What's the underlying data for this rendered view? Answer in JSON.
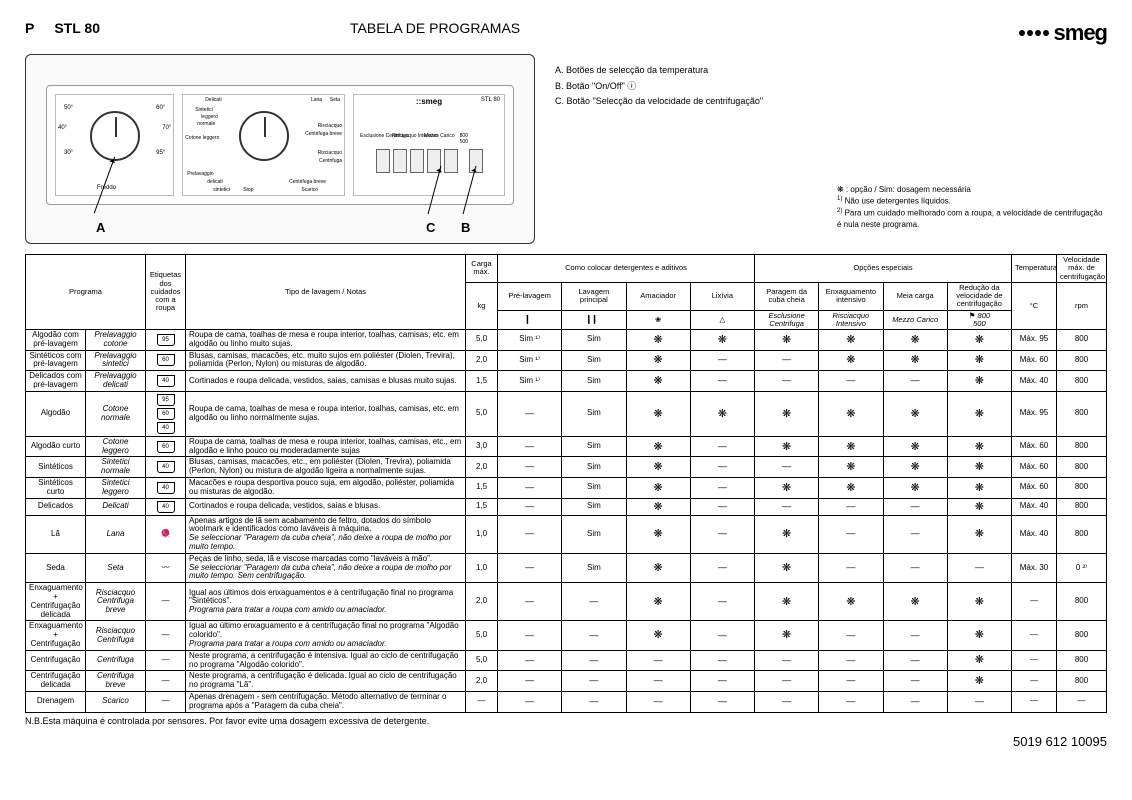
{
  "header": {
    "p": "P",
    "model": "STL 80",
    "title": "TABELA DE PROGRAMAS",
    "logo": "smeg"
  },
  "legend": {
    "a": "A. Botões de selecção da temperatura",
    "b": "B. Botão \"On/Off\"",
    "c": "C. Botão \"Selecção da velocidade de centrifugação\"",
    "opt": "❋ : opção / Sim: dosagem necessária",
    "n1": "Não use detergentes líquidos.",
    "n2": "Para um cuidado melhorado com a roupa, a velocidade de centrifugação é nula neste programa."
  },
  "callout": {
    "a": "A",
    "b": "B",
    "c": "C"
  },
  "dial_labels": [
    "30°",
    "40°",
    "50°",
    "60°",
    "70°",
    "95°",
    "Freddo"
  ],
  "prog_labels": {
    "delicati": "Delicati",
    "sintetici": "Sintetici",
    "cotone": "Cotone leggero",
    "prelavaggio": "Prelavaggio",
    "lana": "Lana",
    "seta": "Seta",
    "risciacquo": "Risciacquo",
    "centrifuga": "Centrifuga breve",
    "centrifuga2": "Centrifuga",
    "scarico": "Scarico",
    "stop": "Stop",
    "normale": "normale",
    "leggero": "leggero",
    "delicati2": "delicati",
    "sintetici2": "sintetici",
    "cotone2": "cotone"
  },
  "btn_labels": [
    "Esclusione Centrifuga",
    "Risciacquo Intensivo",
    "Mezzo Carico",
    "800",
    "500"
  ],
  "th": {
    "programa": "Programa",
    "etiquetas": "Etiquetas dos cuidados com a roupa",
    "tipo": "Tipo de lavagem / Notas",
    "carga": "Carga máx.",
    "kg": "kg",
    "detergentes": "Como colocar detergentes e aditivos",
    "pre": "Pré-lavagem",
    "principal": "Lavagem principal",
    "amaciador": "Amaciador",
    "lixivia": "Lixívia",
    "opcoes": "Opções especiais",
    "paragem": "Paragem da cuba cheia",
    "enxagua": "Enxaguamento intensivo",
    "meia": "Meia carga",
    "reducao": "Redução da velocidade de centrifugação",
    "temp": "Temperatura",
    "c": "°C",
    "velocidade": "Velocidade máx. de centrifugação",
    "rpm": "rpm",
    "esclusione": "Esclusione Centrifuga",
    "risciacquo": "Risciacquo Intensivo",
    "mezzo": "Mezzo Carico",
    "sp800": "800",
    "sp500": "500"
  },
  "rows": [
    {
      "p1": "Algodão com pré-lavagem",
      "p2": "Prelavaggio cotone",
      "care": [
        "95"
      ],
      "tipo": "Roupa de cama, toalhas de mesa e roupa interior, toalhas, camisas, etc. em algodão ou linho muito sujas.",
      "kg": "5,0",
      "pre": "Sim ¹⁾",
      "main": "Sim",
      "ama": "❋",
      "lix": "❋",
      "par": "❋",
      "enx": "❋",
      "mei": "❋",
      "red": "❋",
      "temp": "Máx. 95",
      "rpm": "800"
    },
    {
      "p1": "Sintéticos com pré-lavagem",
      "p2": "Prelavaggio sintetici",
      "care": [
        "60"
      ],
      "tipo": "Blusas, camisas, macacões, etc. muito sujos em poliéster (Diolen, Trevira), poliamida (Perlon, Nylon) ou misturas de algodão.",
      "kg": "2,0",
      "pre": "Sim ¹⁾",
      "main": "Sim",
      "ama": "❋",
      "lix": "—",
      "par": "—",
      "enx": "❋",
      "mei": "❋",
      "red": "❋",
      "temp": "Máx. 60",
      "rpm": "800"
    },
    {
      "p1": "Delicados com pré-lavagem",
      "p2": "Prelavaggio delicati",
      "care": [
        "40"
      ],
      "tipo": "Cortinados e roupa delicada, vestidos, saias, camisas e blusas muito sujas.",
      "kg": "1,5",
      "pre": "Sim ¹⁾",
      "main": "Sim",
      "ama": "❋",
      "lix": "—",
      "par": "—",
      "enx": "—",
      "mei": "—",
      "red": "❋",
      "temp": "Máx. 40",
      "rpm": "800"
    },
    {
      "p1": "Algodão",
      "p2": "Cotone normale",
      "care": [
        "95",
        "60",
        "40"
      ],
      "tipo": "Roupa de cama, toalhas de mesa e roupa interior, toalhas, camisas, etc. em algodão ou linho normalmente sujas.",
      "kg": "5,0",
      "pre": "—",
      "main": "Sim",
      "ama": "❋",
      "lix": "❋",
      "par": "❋",
      "enx": "❋",
      "mei": "❋",
      "red": "❋",
      "temp": "Máx. 95",
      "rpm": "800"
    },
    {
      "p1": "Algodão curto",
      "p2": "Cotone leggero",
      "care": [
        "60"
      ],
      "tipo": "Roupa de cama, toalhas de mesa e roupa interior, toalhas, camisas, etc., em algodão e linho pouco ou moderadamente sujas",
      "kg": "3,0",
      "pre": "—",
      "main": "Sim",
      "ama": "❋",
      "lix": "—",
      "par": "❋",
      "enx": "❋",
      "mei": "❋",
      "red": "❋",
      "temp": "Máx. 60",
      "rpm": "800"
    },
    {
      "p1": "Sintéticos",
      "p2": "Sintetici normale",
      "care": [
        "40"
      ],
      "tipo": "Blusas, camisas, macacões, etc., em poliéster (Diolen, Trevira), poliamida (Perlon, Nylon) ou mistura de algodão ligeira a normalmente sujas.",
      "kg": "2,0",
      "pre": "—",
      "main": "Sim",
      "ama": "❋",
      "lix": "—",
      "par": "—",
      "enx": "❋",
      "mei": "❋",
      "red": "❋",
      "temp": "Máx. 60",
      "rpm": "800"
    },
    {
      "p1": "Sintéticos curto",
      "p2": "Sintetici leggero",
      "care": [
        "40"
      ],
      "tipo": "Macacões e roupa desportiva pouco suja, em algodão, poliéster, poliamida ou misturas de algodão.",
      "kg": "1,5",
      "pre": "—",
      "main": "Sim",
      "ama": "❋",
      "lix": "—",
      "par": "❋",
      "enx": "❋",
      "mei": "❋",
      "red": "❋",
      "temp": "Máx. 60",
      "rpm": "800"
    },
    {
      "p1": "Delicados",
      "p2": "Delicati",
      "care": [
        "40"
      ],
      "tipo": "Cortinados e roupa delicada, vestidos, saias e blusas.",
      "kg": "1,5",
      "pre": "—",
      "main": "Sim",
      "ama": "❋",
      "lix": "—",
      "par": "—",
      "enx": "—",
      "mei": "—",
      "red": "❋",
      "temp": "Máx. 40",
      "rpm": "800"
    },
    {
      "p1": "Lã",
      "p2": "Lana",
      "care": [
        "wool"
      ],
      "tipo": "Apenas artigos de lã sem acabamento de feltro, dotados do símbolo woolmark e identificados como laváveis à máquina.",
      "tipo2": "Se seleccionar \"Paragem da cuba cheia\", não deixe a roupa de molho por muito tempo.",
      "kg": "1,0",
      "pre": "—",
      "main": "Sim",
      "ama": "❋",
      "lix": "—",
      "par": "❋",
      "enx": "—",
      "mei": "—",
      "red": "❋",
      "temp": "Máx. 40",
      "rpm": "800"
    },
    {
      "p1": "Seda",
      "p2": "Seta",
      "care": [
        "silk"
      ],
      "tipo": "Peças de linho, seda, lã e viscose marcadas como \"laváveis à mão\".",
      "tipo2": "Se seleccionar \"Paragem da cuba cheia\", não deixe a roupa de molho por muito tempo. Sem centrifugação.",
      "kg": "1,0",
      "pre": "—",
      "main": "Sim",
      "ama": "❋",
      "lix": "—",
      "par": "❋",
      "enx": "—",
      "mei": "—",
      "red": "—",
      "temp": "Máx. 30",
      "rpm": "0 ²⁾"
    },
    {
      "p1": "Enxaguamento + Centrifugação delicada",
      "p2": "Risciacquo Centrifuga breve",
      "care": [],
      "tipo": "Igual aos últimos dois enxaguamentos e à centrifugação final no programa \"Sintéticos\".",
      "tipo2": "Programa para tratar a roupa com amido ou amaciador.",
      "kg": "2,0",
      "pre": "—",
      "main": "—",
      "ama": "❋",
      "lix": "—",
      "par": "❋",
      "enx": "❋",
      "mei": "❋",
      "red": "❋",
      "temp": "—",
      "rpm": "800"
    },
    {
      "p1": "Enxaguamento + Centrifugação",
      "p2": "Risciacquo Centrifuga",
      "care": [],
      "tipo": "Igual ao último enxaguamento e à centrifugação final no programa \"Algodão colorido\".",
      "tipo2": "Programa para tratar a roupa com amido ou amaciador.",
      "kg": "5,0",
      "pre": "—",
      "main": "—",
      "ama": "❋",
      "lix": "—",
      "par": "❋",
      "enx": "—",
      "mei": "—",
      "red": "❋",
      "temp": "—",
      "rpm": "800"
    },
    {
      "p1": "Centrifugação",
      "p2": "Centrifuga",
      "care": [],
      "tipo": "Neste programa, a centrifugação é intensiva. Igual ao ciclo de centrifugação no programa \"Algodão colorido\".",
      "kg": "5,0",
      "pre": "—",
      "main": "—",
      "ama": "—",
      "lix": "—",
      "par": "—",
      "enx": "—",
      "mei": "—",
      "red": "❋",
      "temp": "—",
      "rpm": "800"
    },
    {
      "p1": "Centrifugação delicada",
      "p2": "Centrifuga breve",
      "care": [],
      "tipo": "Neste programa, a centrifugação é delicada. Igual ao ciclo de centrifugação no programa \"Lã\".",
      "kg": "2,0",
      "pre": "—",
      "main": "—",
      "ama": "—",
      "lix": "—",
      "par": "—",
      "enx": "—",
      "mei": "—",
      "red": "❋",
      "temp": "—",
      "rpm": "800"
    },
    {
      "p1": "Drenagem",
      "p2": "Scarico",
      "care": [],
      "tipo": "Apenas drenagem - sem centrifugação. Método alternativo de terminar o programa após a \"Paragem da cuba cheia\".",
      "kg": "—",
      "pre": "—",
      "main": "—",
      "ama": "—",
      "lix": "—",
      "par": "—",
      "enx": "—",
      "mei": "—",
      "red": "—",
      "temp": "—",
      "rpm": "—"
    }
  ],
  "nb": "N.B.Esta máquina é controlada por sensores. Por favor evite uma dosagem excessiva de detergente.",
  "footer": "5019 612 10095"
}
